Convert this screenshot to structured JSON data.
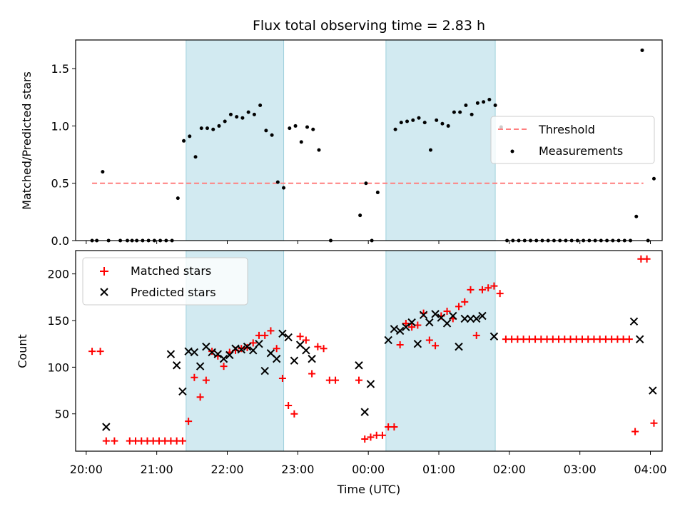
{
  "figure": {
    "title": "Flux total observing time = 2.83 h",
    "xlabel": "Time (UTC)"
  },
  "x_axis": {
    "type": "time",
    "range": [
      "19:51",
      "04:10"
    ],
    "ticks": [
      "20:00",
      "21:00",
      "22:00",
      "23:00",
      "00:00",
      "01:00",
      "02:00",
      "03:00",
      "04:00"
    ]
  },
  "colors": {
    "shade": "#add8e6",
    "threshold": "#ff7f7f",
    "measurements": "#000000",
    "matched": "#ff0000",
    "predicted": "#000000"
  },
  "chart_data": [
    {
      "type": "scatter",
      "ylabel": "Matched/Predicted stars",
      "ylim": [
        0,
        1.75
      ],
      "yticks": [
        "0.0",
        "0.5",
        "1.0",
        "1.5"
      ],
      "shaded_intervals": [
        [
          "21:25",
          "22:48"
        ],
        [
          "00:15",
          "01:48"
        ]
      ],
      "legend": {
        "placement": "center-right"
      },
      "threshold": {
        "name": "Threshold",
        "value": 0.5,
        "x_range": [
          "20:05",
          "03:54"
        ]
      },
      "series": [
        {
          "name": "Measurements",
          "points": [
            [
              "20:05",
              0.0
            ],
            [
              "20:09",
              0.0
            ],
            [
              "20:14",
              0.6
            ],
            [
              "20:19",
              0.0
            ],
            [
              "20:29",
              0.0
            ],
            [
              "20:35",
              0.0
            ],
            [
              "20:39",
              0.0
            ],
            [
              "20:43",
              0.0
            ],
            [
              "20:48",
              0.0
            ],
            [
              "20:53",
              0.0
            ],
            [
              "20:58",
              0.0
            ],
            [
              "21:03",
              0.0
            ],
            [
              "21:08",
              0.0
            ],
            [
              "21:13",
              0.0
            ],
            [
              "21:18",
              0.37
            ],
            [
              "21:23",
              0.87
            ],
            [
              "21:28",
              0.91
            ],
            [
              "21:33",
              0.73
            ],
            [
              "21:38",
              0.98
            ],
            [
              "21:43",
              0.98
            ],
            [
              "21:48",
              0.97
            ],
            [
              "21:53",
              1.0
            ],
            [
              "21:58",
              1.04
            ],
            [
              "22:03",
              1.1
            ],
            [
              "22:08",
              1.08
            ],
            [
              "22:13",
              1.07
            ],
            [
              "22:18",
              1.12
            ],
            [
              "22:23",
              1.1
            ],
            [
              "22:28",
              1.18
            ],
            [
              "22:33",
              0.96
            ],
            [
              "22:38",
              0.92
            ],
            [
              "22:43",
              0.51
            ],
            [
              "22:48",
              0.46
            ],
            [
              "22:53",
              0.98
            ],
            [
              "22:58",
              1.0
            ],
            [
              "23:03",
              0.86
            ],
            [
              "23:08",
              0.99
            ],
            [
              "23:13",
              0.97
            ],
            [
              "23:18",
              0.79
            ],
            [
              "23:28",
              0.0
            ],
            [
              "23:53",
              0.22
            ],
            [
              "23:58",
              0.5
            ],
            [
              "00:03",
              0.0
            ],
            [
              "00:08",
              0.42
            ],
            [
              "00:23",
              0.97
            ],
            [
              "00:28",
              1.03
            ],
            [
              "00:33",
              1.04
            ],
            [
              "00:38",
              1.05
            ],
            [
              "00:43",
              1.07
            ],
            [
              "00:48",
              1.03
            ],
            [
              "00:53",
              0.79
            ],
            [
              "00:58",
              1.05
            ],
            [
              "01:03",
              1.02
            ],
            [
              "01:08",
              1.0
            ],
            [
              "01:13",
              1.12
            ],
            [
              "01:18",
              1.12
            ],
            [
              "01:23",
              1.18
            ],
            [
              "01:28",
              1.1
            ],
            [
              "01:33",
              1.2
            ],
            [
              "01:38",
              1.21
            ],
            [
              "01:43",
              1.23
            ],
            [
              "01:48",
              1.18
            ],
            [
              "01:53",
              0.99
            ],
            [
              "01:58",
              0.0
            ],
            [
              "02:03",
              0.0
            ],
            [
              "02:08",
              0.0
            ],
            [
              "02:13",
              0.0
            ],
            [
              "02:18",
              0.0
            ],
            [
              "02:23",
              0.0
            ],
            [
              "02:28",
              0.0
            ],
            [
              "02:33",
              0.0
            ],
            [
              "02:38",
              0.0
            ],
            [
              "02:43",
              0.0
            ],
            [
              "02:48",
              0.0
            ],
            [
              "02:53",
              0.0
            ],
            [
              "02:58",
              0.0
            ],
            [
              "03:03",
              0.0
            ],
            [
              "03:08",
              0.0
            ],
            [
              "03:13",
              0.0
            ],
            [
              "03:18",
              0.0
            ],
            [
              "03:23",
              0.0
            ],
            [
              "03:28",
              0.0
            ],
            [
              "03:33",
              0.0
            ],
            [
              "03:38",
              0.0
            ],
            [
              "03:43",
              0.0
            ],
            [
              "03:48",
              0.21
            ],
            [
              "03:53",
              1.66
            ],
            [
              "03:58",
              0.0
            ],
            [
              "04:03",
              0.54
            ]
          ]
        }
      ]
    },
    {
      "type": "scatter",
      "ylabel": "Count",
      "ylim": [
        10,
        225
      ],
      "yticks": [
        "50",
        "100",
        "150",
        "200"
      ],
      "shaded_intervals": [
        [
          "21:25",
          "22:48"
        ],
        [
          "00:15",
          "01:48"
        ]
      ],
      "legend": {
        "placement": "top-left"
      },
      "series": [
        {
          "name": "Matched stars",
          "points": [
            [
              "20:05",
              117
            ],
            [
              "20:12",
              117
            ],
            [
              "20:17",
              21
            ],
            [
              "20:24",
              21
            ],
            [
              "20:37",
              21
            ],
            [
              "20:42",
              21
            ],
            [
              "20:47",
              21
            ],
            [
              "20:52",
              21
            ],
            [
              "20:57",
              21
            ],
            [
              "21:02",
              21
            ],
            [
              "21:07",
              21
            ],
            [
              "21:12",
              21
            ],
            [
              "21:17",
              21
            ],
            [
              "21:22",
              21
            ],
            [
              "21:27",
              42
            ],
            [
              "21:32",
              89
            ],
            [
              "21:37",
              68
            ],
            [
              "21:42",
              86
            ],
            [
              "21:47",
              117
            ],
            [
              "21:52",
              112
            ],
            [
              "21:57",
              101
            ],
            [
              "22:02",
              116
            ],
            [
              "22:07",
              118
            ],
            [
              "22:12",
              120
            ],
            [
              "22:17",
              121
            ],
            [
              "22:22",
              126
            ],
            [
              "22:27",
              134
            ],
            [
              "22:32",
              134
            ],
            [
              "22:37",
              139
            ],
            [
              "22:42",
              120
            ],
            [
              "22:47",
              88
            ],
            [
              "22:52",
              59
            ],
            [
              "22:57",
              50
            ],
            [
              "23:02",
              133
            ],
            [
              "23:07",
              129
            ],
            [
              "23:12",
              93
            ],
            [
              "23:17",
              122
            ],
            [
              "23:22",
              120
            ],
            [
              "23:27",
              86
            ],
            [
              "23:32",
              86
            ],
            [
              "23:52",
              86
            ],
            [
              "23:57",
              23
            ],
            [
              "00:02",
              25
            ],
            [
              "00:07",
              27
            ],
            [
              "00:12",
              27
            ],
            [
              "00:17",
              36
            ],
            [
              "00:22",
              36
            ],
            [
              "00:27",
              124
            ],
            [
              "00:32",
              147
            ],
            [
              "00:37",
              143
            ],
            [
              "00:42",
              145
            ],
            [
              "00:47",
              158
            ],
            [
              "00:52",
              129
            ],
            [
              "00:57",
              123
            ],
            [
              "01:02",
              155
            ],
            [
              "01:07",
              160
            ],
            [
              "01:12",
              152
            ],
            [
              "01:17",
              165
            ],
            [
              "01:22",
              170
            ],
            [
              "01:27",
              183
            ],
            [
              "01:32",
              134
            ],
            [
              "01:37",
              183
            ],
            [
              "01:42",
              185
            ],
            [
              "01:47",
              187
            ],
            [
              "01:52",
              179
            ],
            [
              "01:57",
              130
            ],
            [
              "02:02",
              130
            ],
            [
              "02:07",
              130
            ],
            [
              "02:12",
              130
            ],
            [
              "02:17",
              130
            ],
            [
              "02:22",
              130
            ],
            [
              "02:27",
              130
            ],
            [
              "02:32",
              130
            ],
            [
              "02:37",
              130
            ],
            [
              "02:42",
              130
            ],
            [
              "02:47",
              130
            ],
            [
              "02:52",
              130
            ],
            [
              "02:57",
              130
            ],
            [
              "03:02",
              130
            ],
            [
              "03:07",
              130
            ],
            [
              "03:12",
              130
            ],
            [
              "03:17",
              130
            ],
            [
              "03:22",
              130
            ],
            [
              "03:27",
              130
            ],
            [
              "03:32",
              130
            ],
            [
              "03:37",
              130
            ],
            [
              "03:42",
              130
            ],
            [
              "03:47",
              31
            ],
            [
              "03:52",
              216
            ],
            [
              "03:57",
              216
            ],
            [
              "04:03",
              40
            ]
          ]
        },
        {
          "name": "Predicted stars",
          "points": [
            [
              "20:17",
              36
            ],
            [
              "21:12",
              114
            ],
            [
              "21:17",
              102
            ],
            [
              "21:22",
              74
            ],
            [
              "21:27",
              117
            ],
            [
              "21:32",
              116
            ],
            [
              "21:37",
              101
            ],
            [
              "21:42",
              122
            ],
            [
              "21:47",
              116
            ],
            [
              "21:52",
              114
            ],
            [
              "21:57",
              109
            ],
            [
              "22:02",
              113
            ],
            [
              "22:07",
              120
            ],
            [
              "22:12",
              119
            ],
            [
              "22:17",
              122
            ],
            [
              "22:22",
              118
            ],
            [
              "22:27",
              125
            ],
            [
              "22:32",
              96
            ],
            [
              "22:37",
              115
            ],
            [
              "22:42",
              109
            ],
            [
              "22:47",
              136
            ],
            [
              "22:52",
              132
            ],
            [
              "22:57",
              107
            ],
            [
              "23:02",
              124
            ],
            [
              "23:07",
              118
            ],
            [
              "23:12",
              109
            ],
            [
              "23:52",
              102
            ],
            [
              "23:57",
              52
            ],
            [
              "00:02",
              82
            ],
            [
              "00:17",
              129
            ],
            [
              "00:22",
              141
            ],
            [
              "00:27",
              139
            ],
            [
              "00:32",
              143
            ],
            [
              "00:37",
              148
            ],
            [
              "00:42",
              125
            ],
            [
              "00:47",
              156
            ],
            [
              "00:52",
              148
            ],
            [
              "00:57",
              157
            ],
            [
              "01:02",
              153
            ],
            [
              "01:07",
              147
            ],
            [
              "01:12",
              155
            ],
            [
              "01:17",
              122
            ],
            [
              "01:22",
              152
            ],
            [
              "01:27",
              152
            ],
            [
              "01:32",
              152
            ],
            [
              "01:37",
              155
            ],
            [
              "01:47",
              133
            ],
            [
              "03:46",
              149
            ],
            [
              "03:51",
              130
            ],
            [
              "04:02",
              75
            ]
          ]
        }
      ]
    }
  ]
}
